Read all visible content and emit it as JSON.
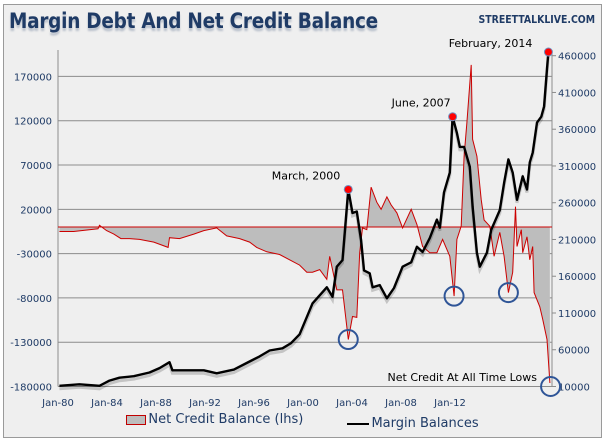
{
  "chart_data": {
    "type": "area+line",
    "title": "Margin Debt And Net Credit Balance",
    "source": "STREETTALKLIVE.COM",
    "x_range": [
      1979.9,
      2014.45
    ],
    "x_tick_labels": [
      "Jan-80",
      "Jan-84",
      "Jan-88",
      "Jan-92",
      "Jan-96",
      "Jan-00",
      "Jan-04",
      "Jan-08",
      "Jan-12"
    ],
    "left_axis": {
      "ylim": [
        -180000,
        210000
      ],
      "ticks": [
        -180000,
        -130000,
        -80000,
        -30000,
        20000,
        70000,
        120000,
        170000
      ]
    },
    "right_axis": {
      "ylim": [
        10000,
        480000
      ],
      "ticks": [
        10000,
        60000,
        110000,
        160000,
        210000,
        260000,
        310000,
        360000,
        410000,
        460000
      ]
    },
    "grid": true,
    "legend_position": "bottom",
    "series": [
      {
        "name": "Net Credit Balance (lhs)",
        "axis": "left",
        "type": "area",
        "color": "#cc0000",
        "fill": "#bdbdbd",
        "points": [
          [
            1980,
            -5000
          ],
          [
            1981,
            -5000
          ],
          [
            1982.7,
            -2000
          ],
          [
            1982.8,
            2000
          ],
          [
            1983.3,
            -4000
          ],
          [
            1983.8,
            -8000
          ],
          [
            1984.3,
            -13000
          ],
          [
            1984.9,
            -13000
          ],
          [
            1985.6,
            -14000
          ],
          [
            1986.6,
            -17000
          ],
          [
            1987.6,
            -23000
          ],
          [
            1987.7,
            -12000
          ],
          [
            1988.4,
            -13000
          ],
          [
            1989.4,
            -8000
          ],
          [
            1990.1,
            -4000
          ],
          [
            1991,
            -1000
          ],
          [
            1991.7,
            -10000
          ],
          [
            1992.6,
            -13000
          ],
          [
            1993.3,
            -17000
          ],
          [
            1993.8,
            -23000
          ],
          [
            1994.5,
            -28000
          ],
          [
            1995.4,
            -31000
          ],
          [
            1996.1,
            -37000
          ],
          [
            1996.8,
            -43000
          ],
          [
            1997.3,
            -51000
          ],
          [
            1997.7,
            -51000
          ],
          [
            1998.2,
            -48000
          ],
          [
            1998.7,
            -59000
          ],
          [
            1998.9,
            -33000
          ],
          [
            1999.4,
            -71000
          ],
          [
            1999.8,
            -71000
          ],
          [
            2000.2,
            -127000
          ],
          [
            2000.5,
            -101000
          ],
          [
            2000.8,
            -102000
          ],
          [
            2001,
            -29000
          ],
          [
            2001.2,
            -1000
          ],
          [
            2001.5,
            -3000
          ],
          [
            2001.8,
            45000
          ],
          [
            2002.2,
            28000
          ],
          [
            2002.5,
            20000
          ],
          [
            2002.9,
            34000
          ],
          [
            2003.2,
            25000
          ],
          [
            2003.6,
            16000
          ],
          [
            2004,
            -1000
          ],
          [
            2004.6,
            20000
          ],
          [
            2005,
            3000
          ],
          [
            2005.4,
            -22000
          ],
          [
            2005.9,
            -29000
          ],
          [
            2006.4,
            -29000
          ],
          [
            2006.8,
            -14000
          ],
          [
            2007.3,
            -33000
          ],
          [
            2007.6,
            -78000
          ],
          [
            2007.8,
            -14000
          ],
          [
            2008.1,
            1000
          ],
          [
            2008.3,
            80000
          ],
          [
            2008.5,
            118000
          ],
          [
            2008.8,
            183000
          ],
          [
            2008.9,
            99000
          ],
          [
            2009.2,
            80000
          ],
          [
            2009.5,
            31000
          ],
          [
            2009.7,
            8000
          ],
          [
            2010.1,
            1000
          ],
          [
            2010.4,
            -33000
          ],
          [
            2010.8,
            -6000
          ],
          [
            2011.1,
            -33000
          ],
          [
            2011.4,
            -74000
          ],
          [
            2011.7,
            -51000
          ],
          [
            2011.9,
            23000
          ],
          [
            2012,
            -22000
          ],
          [
            2012.3,
            -3000
          ],
          [
            2012.4,
            -29000
          ],
          [
            2012.7,
            -11000
          ],
          [
            2012.9,
            -37000
          ],
          [
            2013.1,
            -22000
          ],
          [
            2013.2,
            -74000
          ],
          [
            2013.6,
            -90000
          ],
          [
            2013.8,
            -104000
          ],
          [
            2014.1,
            -127000
          ],
          [
            2014.3,
            -176000
          ]
        ]
      },
      {
        "name": "Margin Balances",
        "axis": "right",
        "type": "line",
        "color": "#000000",
        "points": [
          [
            1980,
            11000
          ],
          [
            1981.4,
            13000
          ],
          [
            1982.8,
            11000
          ],
          [
            1983.5,
            18000
          ],
          [
            1984.2,
            22000
          ],
          [
            1985.2,
            24000
          ],
          [
            1986.3,
            29000
          ],
          [
            1987,
            35000
          ],
          [
            1987.7,
            43000
          ],
          [
            1987.9,
            32000
          ],
          [
            1989.1,
            32000
          ],
          [
            1990.1,
            32000
          ],
          [
            1991,
            28000
          ],
          [
            1992.2,
            33000
          ],
          [
            1993.3,
            44000
          ],
          [
            1994,
            51000
          ],
          [
            1994.7,
            59000
          ],
          [
            1995.6,
            62000
          ],
          [
            1996.2,
            69000
          ],
          [
            1996.8,
            81000
          ],
          [
            1997.7,
            123000
          ],
          [
            1998.7,
            145000
          ],
          [
            1999.1,
            132000
          ],
          [
            1999.4,
            173000
          ],
          [
            1999.8,
            182000
          ],
          [
            2000.2,
            278000
          ],
          [
            2000.5,
            246000
          ],
          [
            2000.8,
            248000
          ],
          [
            2001.1,
            209000
          ],
          [
            2001.3,
            168000
          ],
          [
            2001.7,
            164000
          ],
          [
            2001.9,
            145000
          ],
          [
            2002.4,
            148000
          ],
          [
            2002.9,
            130000
          ],
          [
            2003.4,
            144000
          ],
          [
            2004,
            173000
          ],
          [
            2004.6,
            179000
          ],
          [
            2005,
            200000
          ],
          [
            2005.4,
            193000
          ],
          [
            2005.9,
            212000
          ],
          [
            2006.4,
            237000
          ],
          [
            2006.6,
            226000
          ],
          [
            2006.9,
            274000
          ],
          [
            2007.3,
            301000
          ],
          [
            2007.5,
            377000
          ],
          [
            2007.8,
            355000
          ],
          [
            2008,
            336000
          ],
          [
            2008.3,
            336000
          ],
          [
            2008.7,
            309000
          ],
          [
            2008.9,
            255000
          ],
          [
            2009.2,
            192000
          ],
          [
            2009.4,
            173000
          ],
          [
            2009.9,
            192000
          ],
          [
            2010.2,
            223000
          ],
          [
            2010.8,
            250000
          ],
          [
            2011.1,
            287000
          ],
          [
            2011.4,
            319000
          ],
          [
            2011.7,
            301000
          ],
          [
            2012,
            264000
          ],
          [
            2012.4,
            296000
          ],
          [
            2012.7,
            278000
          ],
          [
            2012.9,
            315000
          ],
          [
            2013.1,
            328000
          ],
          [
            2013.4,
            369000
          ],
          [
            2013.7,
            377000
          ],
          [
            2013.9,
            391000
          ],
          [
            2014.1,
            442000
          ],
          [
            2014.2,
            465000
          ]
        ]
      }
    ],
    "peaks": [
      {
        "label": "March,  2000",
        "x": 2000.2,
        "y": 278000
      },
      {
        "label": "June,  2007",
        "x": 2007.5,
        "y": 377000
      },
      {
        "label": "February,  2014",
        "x": 2014.2,
        "y": 465000
      }
    ],
    "lows": [
      {
        "x": 2000.2,
        "y": -127000
      },
      {
        "x": 2007.6,
        "y": -78000
      },
      {
        "x": 2011.4,
        "y": -74000
      },
      {
        "x": 2014.35,
        "y": -180000
      }
    ],
    "low_annotation": "Net Credit At All Time Lows"
  }
}
